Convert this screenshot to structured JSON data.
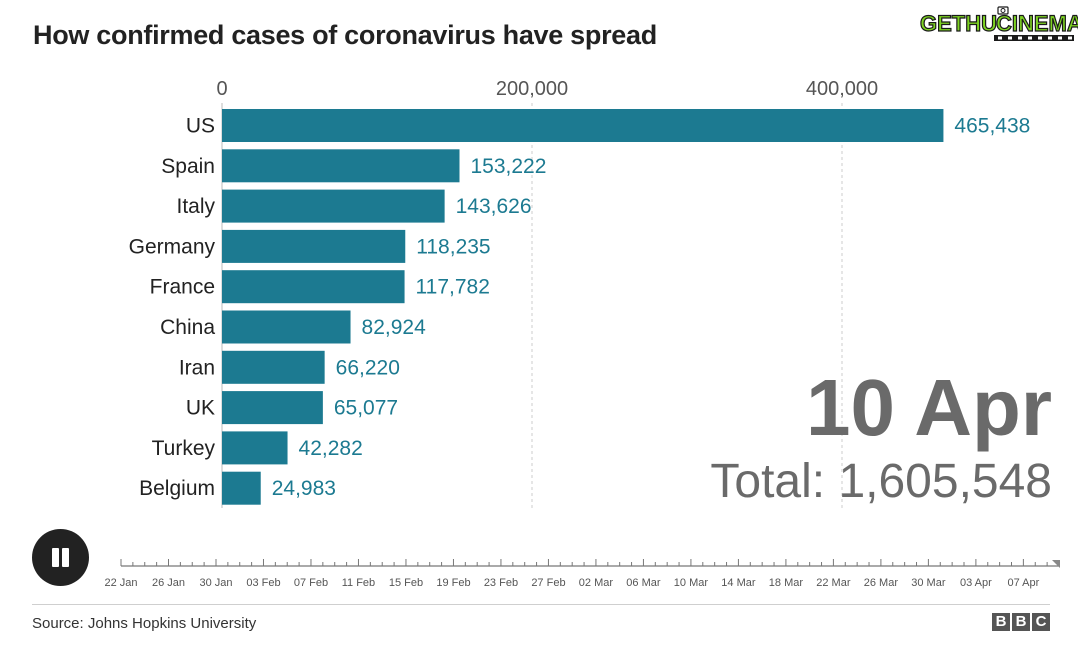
{
  "title": "How confirmed cases of coronavirus have spread",
  "logo": {
    "part1": "GETHU",
    "part2": "CINEMA"
  },
  "big_date": "10 Apr",
  "total": "Total: 1,605,548",
  "source": "Source: Johns Hopkins University",
  "bbc_letters": [
    "B",
    "B",
    "C"
  ],
  "colors": {
    "bar": "#1c7a91",
    "value_label": "#1c7a91",
    "big_text": "#6a6a6a",
    "logo_green": "#7dd322"
  },
  "player": {
    "state_icon": "pause-icon"
  },
  "timeline": {
    "ticks": [
      "22 Jan",
      "26 Jan",
      "30 Jan",
      "03 Feb",
      "07 Feb",
      "11 Feb",
      "15 Feb",
      "19 Feb",
      "23 Feb",
      "27 Feb",
      "02 Mar",
      "06 Mar",
      "10 Mar",
      "14 Mar",
      "18 Mar",
      "22 Mar",
      "26 Mar",
      "30 Mar",
      "03 Apr",
      "07 Apr"
    ],
    "start": "22 Jan",
    "end": "10 Apr",
    "current": "10 Apr",
    "progress": 1.0
  },
  "chart_data": {
    "type": "bar",
    "orientation": "horizontal",
    "categories": [
      "US",
      "Spain",
      "Italy",
      "Germany",
      "France",
      "China",
      "Iran",
      "UK",
      "Turkey",
      "Belgium"
    ],
    "values": [
      465438,
      153222,
      143626,
      118235,
      117782,
      82924,
      66220,
      65077,
      42282,
      24983
    ],
    "value_labels": [
      "465,438",
      "153,222",
      "143,626",
      "118,235",
      "117,782",
      "82,924",
      "66,220",
      "65,077",
      "42,282",
      "24,983"
    ],
    "x_ticks": [
      0,
      200000,
      400000
    ],
    "x_tick_labels": [
      "0",
      "200,000",
      "400,000"
    ],
    "xlim": [
      0,
      540000
    ],
    "axis_position": "top",
    "grid": true
  }
}
